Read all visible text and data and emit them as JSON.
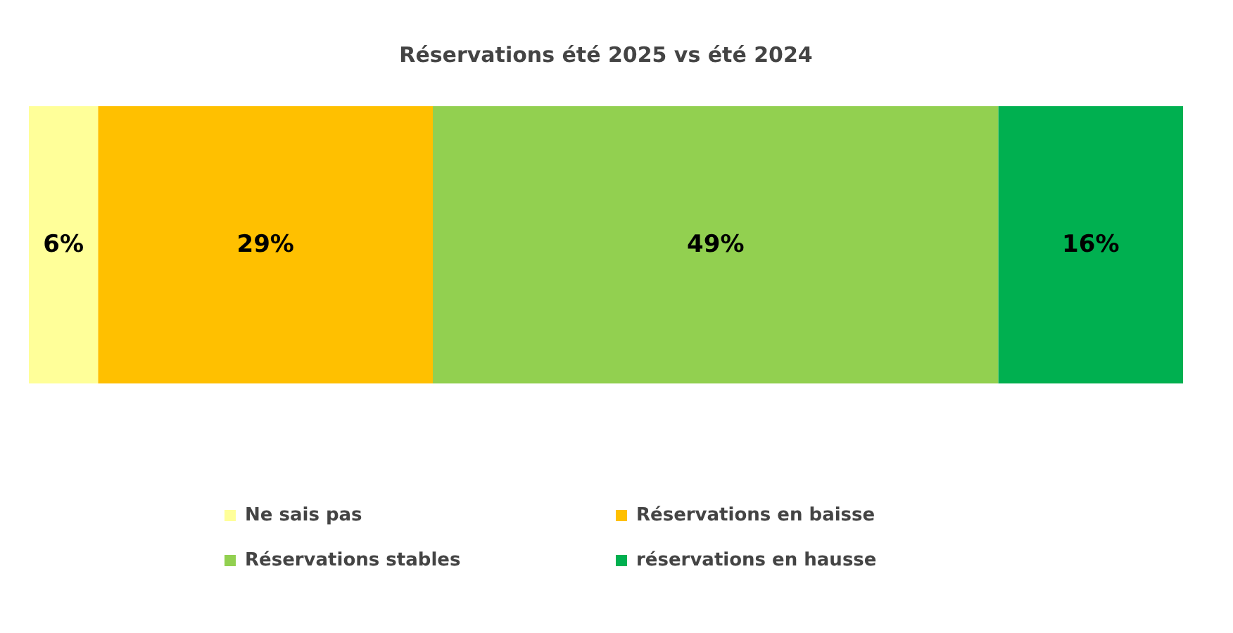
{
  "chart_data": {
    "type": "bar",
    "orientation": "horizontal",
    "stacked": true,
    "title": "Réservations été 2025 vs été 2024",
    "categories": [
      null
    ],
    "legend": "bottom",
    "tick_labels": false,
    "series": [
      {
        "name": "Ne sais pas",
        "color": "#ffff99",
        "values": [
          6
        ],
        "value_labels": [
          "6%"
        ]
      },
      {
        "name": "Réservations en baisse",
        "color": "#ffc000",
        "values": [
          29
        ],
        "value_labels": [
          "29%"
        ]
      },
      {
        "name": "Réservations stables",
        "color": "#92d050",
        "values": [
          49
        ],
        "value_labels": [
          "49%"
        ]
      },
      {
        "name": "réservations en hausse",
        "color": "#00b050",
        "values": [
          16
        ],
        "value_labels": [
          "16%"
        ]
      }
    ]
  }
}
